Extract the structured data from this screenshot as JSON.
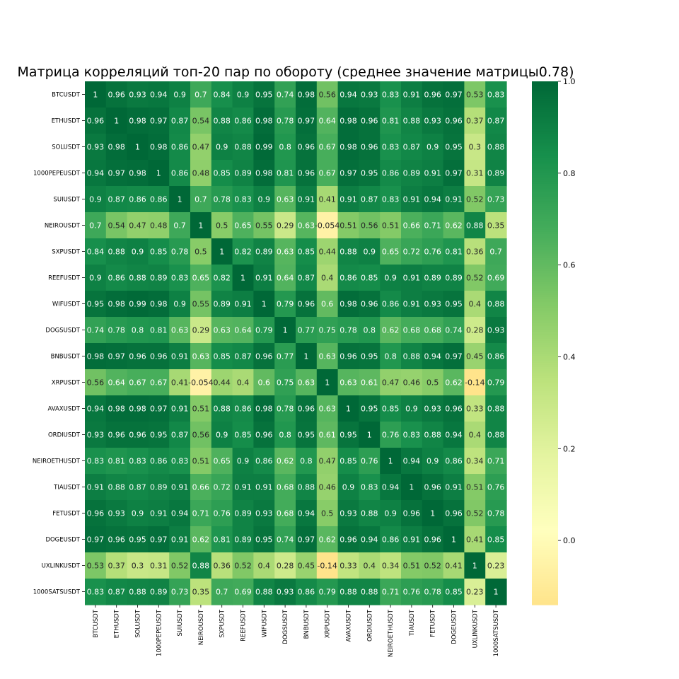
{
  "chart_data": {
    "type": "heatmap",
    "title": "Матрица корреляций топ-20 пар по обороту (среднее значение матрицы0.78)",
    "labels": [
      "BTCUSDT",
      "ETHUSDT",
      "SOLUSDT",
      "1000PEPEUSDT",
      "SUIUSDT",
      "NEIROUSDT",
      "SXPUSDT",
      "REEFUSDT",
      "WIFUSDT",
      "DOGSUSDT",
      "BNBUSDT",
      "XRPUSDT",
      "AVAXUSDT",
      "ORDIUSDT",
      "NEIROETHUSDT",
      "TIAUSDT",
      "FETUSDT",
      "DOGEUSDT",
      "UXLINKUSDT",
      "1000SATSUSDT"
    ],
    "matrix": [
      [
        "1",
        "0.96",
        "0.93",
        "0.94",
        "0.9",
        "0.7",
        "0.84",
        "0.9",
        "0.95",
        "0.74",
        "0.98",
        "0.56",
        "0.94",
        "0.93",
        "0.83",
        "0.91",
        "0.96",
        "0.97",
        "0.53",
        "0.83"
      ],
      [
        "0.96",
        "1",
        "0.98",
        "0.97",
        "0.87",
        "0.54",
        "0.88",
        "0.86",
        "0.98",
        "0.78",
        "0.97",
        "0.64",
        "0.98",
        "0.96",
        "0.81",
        "0.88",
        "0.93",
        "0.96",
        "0.37",
        "0.87"
      ],
      [
        "0.93",
        "0.98",
        "1",
        "0.98",
        "0.86",
        "0.47",
        "0.9",
        "0.88",
        "0.99",
        "0.8",
        "0.96",
        "0.67",
        "0.98",
        "0.96",
        "0.83",
        "0.87",
        "0.9",
        "0.95",
        "0.3",
        "0.88"
      ],
      [
        "0.94",
        "0.97",
        "0.98",
        "1",
        "0.86",
        "0.48",
        "0.85",
        "0.89",
        "0.98",
        "0.81",
        "0.96",
        "0.67",
        "0.97",
        "0.95",
        "0.86",
        "0.89",
        "0.91",
        "0.97",
        "0.31",
        "0.89"
      ],
      [
        "0.9",
        "0.87",
        "0.86",
        "0.86",
        "1",
        "0.7",
        "0.78",
        "0.83",
        "0.9",
        "0.63",
        "0.91",
        "0.41",
        "0.91",
        "0.87",
        "0.83",
        "0.91",
        "0.94",
        "0.91",
        "0.52",
        "0.73"
      ],
      [
        "0.7",
        "0.54",
        "0.47",
        "0.48",
        "0.7",
        "1",
        "0.5",
        "0.65",
        "0.55",
        "0.29",
        "0.63",
        "-0.054",
        "0.51",
        "0.56",
        "0.51",
        "0.66",
        "0.71",
        "0.62",
        "0.88",
        "0.35"
      ],
      [
        "0.84",
        "0.88",
        "0.9",
        "0.85",
        "0.78",
        "0.5",
        "1",
        "0.82",
        "0.89",
        "0.63",
        "0.85",
        "0.44",
        "0.88",
        "0.9",
        "0.65",
        "0.72",
        "0.76",
        "0.81",
        "0.36",
        "0.7"
      ],
      [
        "0.9",
        "0.86",
        "0.88",
        "0.89",
        "0.83",
        "0.65",
        "0.82",
        "1",
        "0.91",
        "0.64",
        "0.87",
        "0.4",
        "0.86",
        "0.85",
        "0.9",
        "0.91",
        "0.89",
        "0.89",
        "0.52",
        "0.69"
      ],
      [
        "0.95",
        "0.98",
        "0.99",
        "0.98",
        "0.9",
        "0.55",
        "0.89",
        "0.91",
        "1",
        "0.79",
        "0.96",
        "0.6",
        "0.98",
        "0.96",
        "0.86",
        "0.91",
        "0.93",
        "0.95",
        "0.4",
        "0.88"
      ],
      [
        "0.74",
        "0.78",
        "0.8",
        "0.81",
        "0.63",
        "0.29",
        "0.63",
        "0.64",
        "0.79",
        "1",
        "0.77",
        "0.75",
        "0.78",
        "0.8",
        "0.62",
        "0.68",
        "0.68",
        "0.74",
        "0.28",
        "0.93"
      ],
      [
        "0.98",
        "0.97",
        "0.96",
        "0.96",
        "0.91",
        "0.63",
        "0.85",
        "0.87",
        "0.96",
        "0.77",
        "1",
        "0.63",
        "0.96",
        "0.95",
        "0.8",
        "0.88",
        "0.94",
        "0.97",
        "0.45",
        "0.86"
      ],
      [
        "0.56",
        "0.64",
        "0.67",
        "0.67",
        "0.41",
        "-0.054",
        "0.44",
        "0.4",
        "0.6",
        "0.75",
        "0.63",
        "1",
        "0.63",
        "0.61",
        "0.47",
        "0.46",
        "0.5",
        "0.62",
        "-0.14",
        "0.79"
      ],
      [
        "0.94",
        "0.98",
        "0.98",
        "0.97",
        "0.91",
        "0.51",
        "0.88",
        "0.86",
        "0.98",
        "0.78",
        "0.96",
        "0.63",
        "1",
        "0.95",
        "0.85",
        "0.9",
        "0.93",
        "0.96",
        "0.33",
        "0.88"
      ],
      [
        "0.93",
        "0.96",
        "0.96",
        "0.95",
        "0.87",
        "0.56",
        "0.9",
        "0.85",
        "0.96",
        "0.8",
        "0.95",
        "0.61",
        "0.95",
        "1",
        "0.76",
        "0.83",
        "0.88",
        "0.94",
        "0.4",
        "0.88"
      ],
      [
        "0.83",
        "0.81",
        "0.83",
        "0.86",
        "0.83",
        "0.51",
        "0.65",
        "0.9",
        "0.86",
        "0.62",
        "0.8",
        "0.47",
        "0.85",
        "0.76",
        "1",
        "0.94",
        "0.9",
        "0.86",
        "0.34",
        "0.71"
      ],
      [
        "0.91",
        "0.88",
        "0.87",
        "0.89",
        "0.91",
        "0.66",
        "0.72",
        "0.91",
        "0.91",
        "0.68",
        "0.88",
        "0.46",
        "0.9",
        "0.83",
        "0.94",
        "1",
        "0.96",
        "0.91",
        "0.51",
        "0.76"
      ],
      [
        "0.96",
        "0.93",
        "0.9",
        "0.91",
        "0.94",
        "0.71",
        "0.76",
        "0.89",
        "0.93",
        "0.68",
        "0.94",
        "0.5",
        "0.93",
        "0.88",
        "0.9",
        "0.96",
        "1",
        "0.96",
        "0.52",
        "0.78"
      ],
      [
        "0.97",
        "0.96",
        "0.95",
        "0.97",
        "0.91",
        "0.62",
        "0.81",
        "0.89",
        "0.95",
        "0.74",
        "0.97",
        "0.62",
        "0.96",
        "0.94",
        "0.86",
        "0.91",
        "0.96",
        "1",
        "0.41",
        "0.85"
      ],
      [
        "0.53",
        "0.37",
        "0.3",
        "0.31",
        "0.52",
        "0.88",
        "0.36",
        "0.52",
        "0.4",
        "0.28",
        "0.45",
        "-0.14",
        "0.33",
        "0.4",
        "0.34",
        "0.51",
        "0.52",
        "0.41",
        "1",
        "0.23"
      ],
      [
        "0.83",
        "0.87",
        "0.88",
        "0.89",
        "0.73",
        "0.35",
        "0.7",
        "0.69",
        "0.88",
        "0.93",
        "0.86",
        "0.79",
        "0.88",
        "0.88",
        "0.71",
        "0.76",
        "0.78",
        "0.85",
        "0.23",
        "1"
      ]
    ],
    "colorbar": {
      "min": -0.14,
      "max": 1.0,
      "ticks": [
        "0.0",
        "0.2",
        "0.4",
        "0.6",
        "0.8",
        "1.0"
      ],
      "colormap": [
        "#ffe48b",
        "#ffffbe",
        "#e4f4a0",
        "#bce27c",
        "#84ca67",
        "#45ad5b",
        "#17904c",
        "#006837"
      ]
    }
  }
}
